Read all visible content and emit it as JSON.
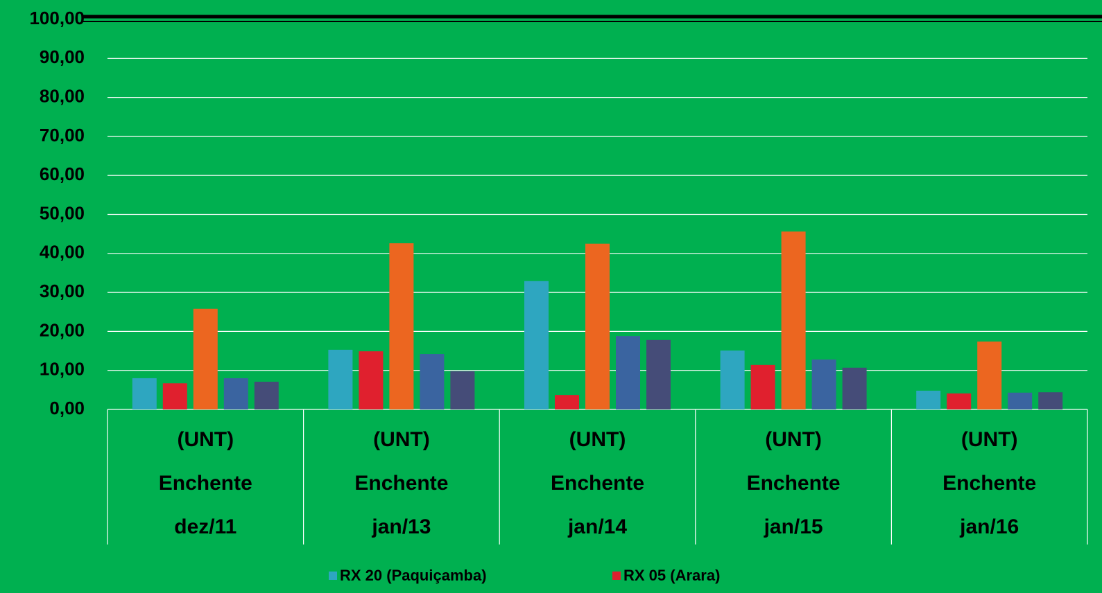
{
  "chart_data": {
    "type": "bar",
    "categories": [
      [
        "(UNT)",
        "Enchente",
        "dez/11"
      ],
      [
        "(UNT)",
        "Enchente",
        "jan/13"
      ],
      [
        "(UNT)",
        "Enchente",
        "jan/14"
      ],
      [
        "(UNT)",
        "Enchente",
        "jan/15"
      ],
      [
        "(UNT)",
        "Enchente",
        "jan/16"
      ]
    ],
    "series": [
      {
        "name": "RX 20 (Paquiçamba)",
        "color": "#2ea6c0",
        "values": [
          8.0,
          15.3,
          32.9,
          15.1,
          4.8
        ]
      },
      {
        "name": "RX 05 (Arara)",
        "color": "#e0202e",
        "values": [
          6.7,
          14.9,
          3.7,
          11.4,
          4.1
        ]
      },
      {
        "color": "#ec6620",
        "values": [
          25.8,
          42.6,
          42.5,
          45.6,
          17.4
        ]
      },
      {
        "color": "#3a64a0",
        "values": [
          8.0,
          14.2,
          18.8,
          12.8,
          4.3
        ]
      },
      {
        "color": "#454c78",
        "values": [
          7.1,
          9.8,
          17.8,
          10.7,
          4.4
        ]
      }
    ],
    "ylim": [
      0,
      100
    ],
    "yticks": [
      {
        "value": 0,
        "label": "0,00"
      },
      {
        "value": 10,
        "label": "10,00"
      },
      {
        "value": 20,
        "label": "20,00"
      },
      {
        "value": 30,
        "label": "30,00"
      },
      {
        "value": 40,
        "label": "40,00"
      },
      {
        "value": 50,
        "label": "50,00"
      },
      {
        "value": 60,
        "label": "60,00"
      },
      {
        "value": 70,
        "label": "70,00"
      },
      {
        "value": 80,
        "label": "80,00"
      },
      {
        "value": 90,
        "label": "90,00"
      },
      {
        "value": 100,
        "label": "100,00"
      }
    ],
    "grid": true
  }
}
